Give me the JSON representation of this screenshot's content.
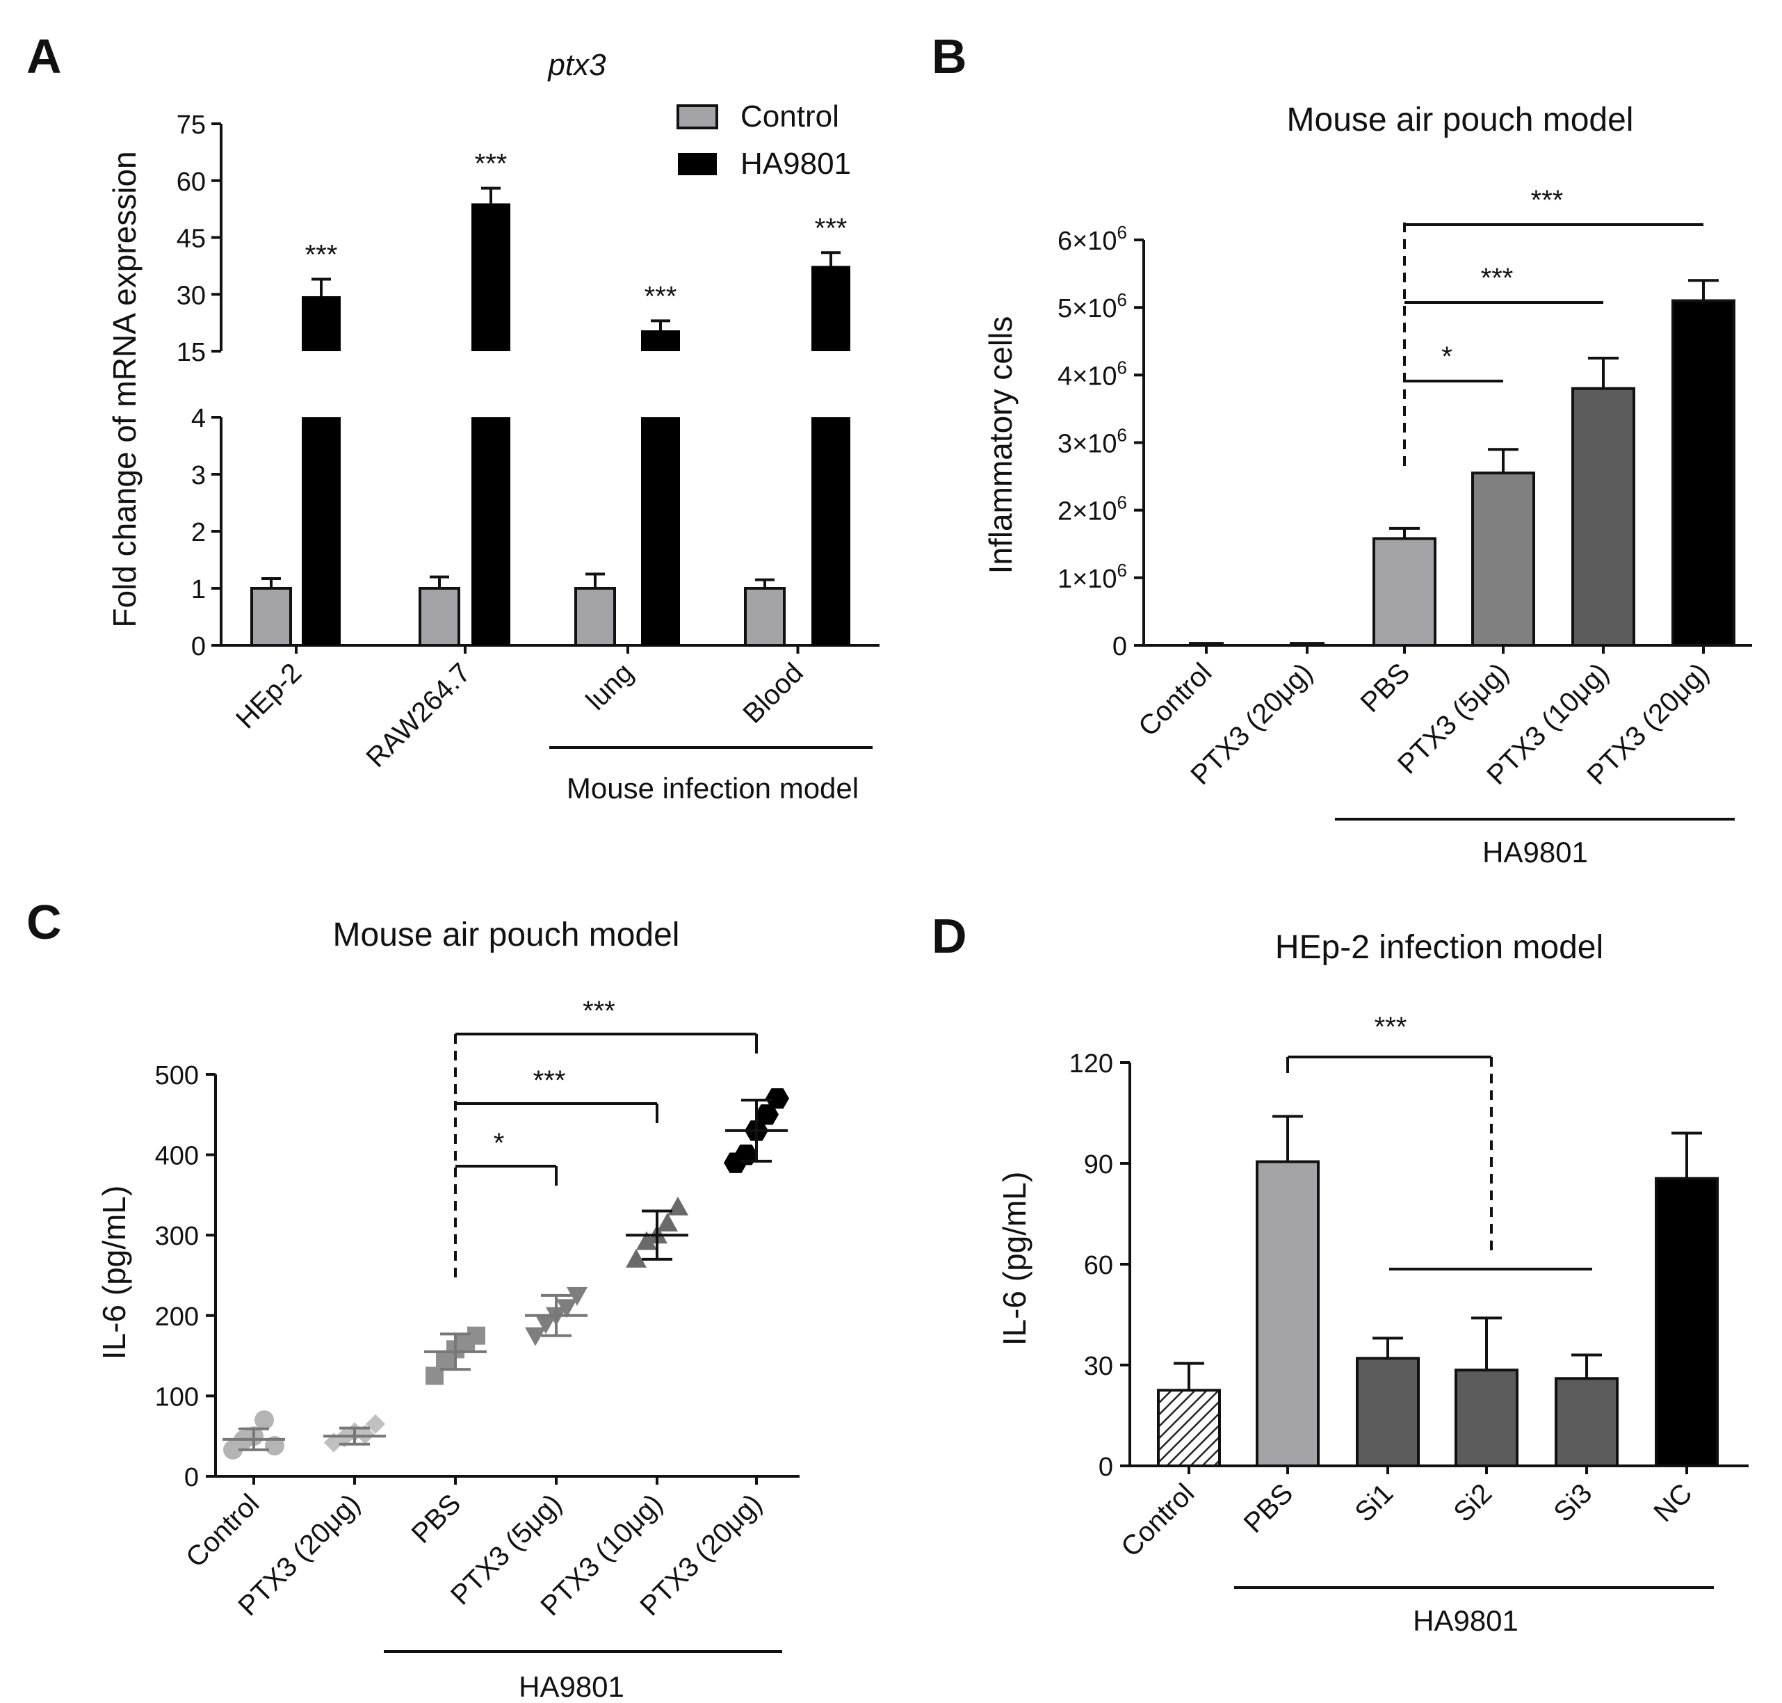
{
  "colors": {
    "control_gray": "#a3a3a8",
    "dark_gray": "#5c5c5c",
    "mid_gray": "#808080",
    "light_gray": "#a5a5a5",
    "black": "#000000",
    "scatter_control": "#b4b4b4",
    "scatter_ptx20": "#c0c0c0",
    "scatter_pbs": "#8e8e8e",
    "scatter_5": "#7e7e7e",
    "scatter_10": "#6a6a6a",
    "scatter_20": "#000000"
  },
  "chart_data": [
    {
      "panel": "A",
      "type": "bar",
      "title": "ptx3",
      "ylabel": "Fold change of mRNA expression",
      "categories": [
        "HEp-2",
        "RAW264.7",
        "lung",
        "Blood"
      ],
      "group_label": "Mouse infection model",
      "axis_break": {
        "lower": [
          0,
          4
        ],
        "upper": [
          15,
          75
        ]
      },
      "yticks_lower": [
        "0",
        "1",
        "2",
        "3",
        "4"
      ],
      "yticks_upper": [
        "15",
        "30",
        "45",
        "60",
        "75"
      ],
      "legend": "top-right",
      "series": [
        {
          "name": "Control",
          "values": [
            1.0,
            1.0,
            1.0,
            1.0
          ],
          "errors": [
            0.17,
            0.2,
            0.25,
            0.15
          ]
        },
        {
          "name": "HA9801",
          "values": [
            29.5,
            54,
            20.5,
            37.5
          ],
          "errors": [
            4.5,
            4,
            2.5,
            3.5
          ]
        }
      ],
      "significance": [
        "***",
        "***",
        "***",
        "***"
      ]
    },
    {
      "panel": "B",
      "type": "bar",
      "title": "Mouse air pouch model",
      "ylabel": "Inflammatory cells",
      "categories": [
        "Control",
        "PTX3 (20μg)",
        "PBS",
        "PTX3 (5μg)",
        "PTX3 (10μg)",
        "PTX3 (20μg)"
      ],
      "group_label": "HA9801",
      "ylim": [
        0,
        6000000
      ],
      "yticks": [
        {
          "m": "0",
          "e": ""
        },
        {
          "m": "1×10",
          "e": "6"
        },
        {
          "m": "2×10",
          "e": "6"
        },
        {
          "m": "3×10",
          "e": "6"
        },
        {
          "m": "4×10",
          "e": "6"
        },
        {
          "m": "5×10",
          "e": "6"
        },
        {
          "m": "6×10",
          "e": "6"
        }
      ],
      "values": [
        30000,
        30000,
        1580000,
        2550000,
        3800000,
        5100000
      ],
      "errors": [
        0,
        0,
        150000,
        350000,
        450000,
        300000
      ],
      "significance": [
        {
          "from": 2,
          "to": 3,
          "label": "*"
        },
        {
          "from": 2,
          "to": 4,
          "label": "***"
        },
        {
          "from": 2,
          "to": 5,
          "label": "***"
        }
      ]
    },
    {
      "panel": "C",
      "type": "scatter",
      "title": "Mouse air pouch model",
      "ylabel": "IL-6 (pg/mL)",
      "categories": [
        "Control",
        "PTX3 (20μg)",
        "PBS",
        "PTX3 (5μg)",
        "PTX3 (10μg)",
        "PTX3 (20μg)"
      ],
      "group_label": "HA9801",
      "ylim": [
        0,
        500
      ],
      "yticks": [
        "0",
        "100",
        "200",
        "300",
        "400",
        "500"
      ],
      "groups": [
        {
          "points": [
            33,
            45,
            50,
            70,
            38
          ],
          "mean": 46,
          "sd": 13
        },
        {
          "points": [
            42,
            48,
            55,
            52,
            65
          ],
          "mean": 50,
          "sd": 10
        },
        {
          "points": [
            125,
            145,
            158,
            165,
            175
          ],
          "mean": 155,
          "sd": 22
        },
        {
          "points": [
            175,
            190,
            200,
            210,
            225
          ],
          "mean": 200,
          "sd": 25
        },
        {
          "points": [
            270,
            292,
            300,
            315,
            335
          ],
          "mean": 300,
          "sd": 30
        },
        {
          "points": [
            390,
            400,
            430,
            450,
            470
          ],
          "mean": 430,
          "sd": 38
        }
      ],
      "significance": [
        {
          "from": 2,
          "to": 3,
          "label": "*"
        },
        {
          "from": 2,
          "to": 4,
          "label": "***"
        },
        {
          "from": 2,
          "to": 5,
          "label": "***"
        }
      ]
    },
    {
      "panel": "D",
      "type": "bar",
      "title": "HEp-2 infection model",
      "ylabel": "IL-6 (pg/mL)",
      "categories": [
        "Control",
        "PBS",
        "Si1",
        "Si2",
        "Si3",
        "NC"
      ],
      "group_label": "HA9801",
      "ylim": [
        0,
        120
      ],
      "yticks": [
        "0",
        "30",
        "60",
        "90",
        "120"
      ],
      "values": [
        22.5,
        90.5,
        32,
        28.5,
        26,
        85.5
      ],
      "errors": [
        8,
        13.5,
        6,
        15.5,
        7,
        13.5
      ],
      "significance": [
        {
          "from": 1,
          "to": "Si1-Si3",
          "label": "***"
        }
      ]
    }
  ]
}
